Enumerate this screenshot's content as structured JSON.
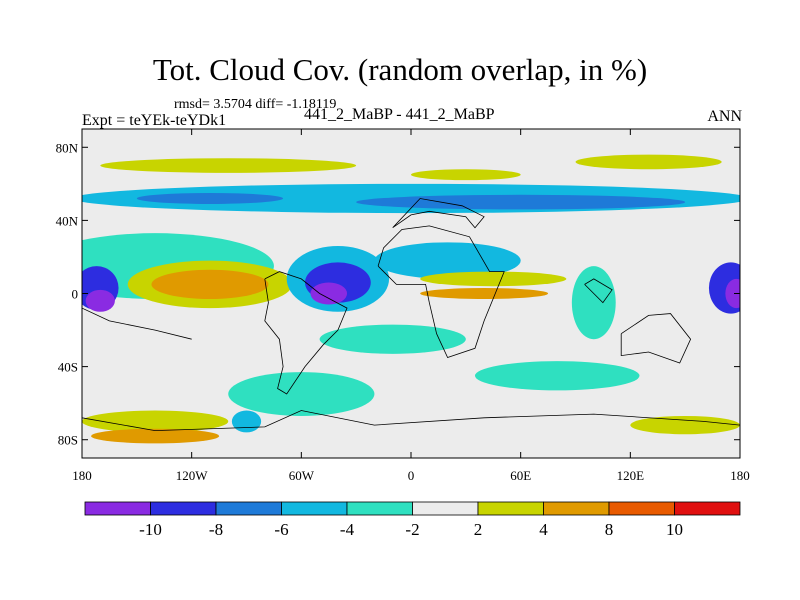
{
  "chart_data": {
    "type": "heatmap",
    "title": "Tot. Cloud Cov. (random overlap, in %)",
    "stats": "rmsd= 3.5704  diff= -1.18119",
    "left_label": "Expt = teYEk-teYDk1",
    "center_label": "441_2_MaBP - 441_2_MaBP",
    "season": "ANN",
    "x_ticks": [
      "180",
      "120W",
      "60W",
      "0",
      "60E",
      "120E",
      "180"
    ],
    "x_tick_values": [
      -180,
      -120,
      -60,
      0,
      60,
      120,
      180
    ],
    "y_ticks": [
      "80N",
      "40N",
      "0",
      "40S",
      "80S"
    ],
    "y_tick_values": [
      80,
      40,
      0,
      -40,
      -80
    ],
    "xlim": [
      -180,
      180
    ],
    "ylim": [
      -90,
      90
    ],
    "colorbar": {
      "labels": [
        "-10",
        "-8",
        "-6",
        "-4",
        "-2",
        "2",
        "4",
        "8",
        "10"
      ],
      "colors": [
        "#8a2be2",
        "#2d2de0",
        "#1e7ad8",
        "#12b8e0",
        "#2fe0c0",
        "#ececec",
        "#c8d400",
        "#e09a00",
        "#e85a00",
        "#e01010"
      ]
    },
    "blobs": [
      {
        "lon": -100,
        "lat": 70,
        "rx": 70,
        "ry": 4,
        "level": 6
      },
      {
        "lon": 130,
        "lat": 72,
        "rx": 40,
        "ry": 4,
        "level": 6
      },
      {
        "lon": 30,
        "lat": 65,
        "rx": 30,
        "ry": 3,
        "level": 6
      },
      {
        "lon": 0,
        "lat": 52,
        "rx": 185,
        "ry": 8,
        "level": 3
      },
      {
        "lon": 60,
        "lat": 50,
        "rx": 90,
        "ry": 4,
        "level": 2
      },
      {
        "lon": -110,
        "lat": 52,
        "rx": 40,
        "ry": 3,
        "level": 2
      },
      {
        "lon": -140,
        "lat": 15,
        "rx": 65,
        "ry": 18,
        "level": 4
      },
      {
        "lon": -172,
        "lat": 3,
        "rx": 12,
        "ry": 12,
        "level": 1
      },
      {
        "lon": -170,
        "lat": -4,
        "rx": 8,
        "ry": 6,
        "level": 0
      },
      {
        "lon": -110,
        "lat": 5,
        "rx": 45,
        "ry": 13,
        "level": 6
      },
      {
        "lon": -110,
        "lat": 5,
        "rx": 32,
        "ry": 8,
        "level": 7
      },
      {
        "lon": -40,
        "lat": 8,
        "rx": 28,
        "ry": 18,
        "level": 3
      },
      {
        "lon": -40,
        "lat": 6,
        "rx": 18,
        "ry": 11,
        "level": 1
      },
      {
        "lon": -45,
        "lat": 0,
        "rx": 10,
        "ry": 6,
        "level": 0
      },
      {
        "lon": 20,
        "lat": 18,
        "rx": 40,
        "ry": 10,
        "level": 3
      },
      {
        "lon": 45,
        "lat": 8,
        "rx": 40,
        "ry": 4,
        "level": 6
      },
      {
        "lon": 40,
        "lat": 0,
        "rx": 35,
        "ry": 3,
        "level": 7
      },
      {
        "lon": -10,
        "lat": -25,
        "rx": 40,
        "ry": 8,
        "level": 4
      },
      {
        "lon": 100,
        "lat": -5,
        "rx": 12,
        "ry": 20,
        "level": 4
      },
      {
        "lon": 175,
        "lat": 3,
        "rx": 12,
        "ry": 14,
        "level": 1
      },
      {
        "lon": 178,
        "lat": 0,
        "rx": 6,
        "ry": 8,
        "level": 0
      },
      {
        "lon": -60,
        "lat": -55,
        "rx": 40,
        "ry": 12,
        "level": 4
      },
      {
        "lon": 80,
        "lat": -45,
        "rx": 45,
        "ry": 8,
        "level": 4
      },
      {
        "lon": -140,
        "lat": -70,
        "rx": 40,
        "ry": 6,
        "level": 6
      },
      {
        "lon": -140,
        "lat": -78,
        "rx": 35,
        "ry": 4,
        "level": 7
      },
      {
        "lon": 150,
        "lat": -72,
        "rx": 30,
        "ry": 5,
        "level": 6
      },
      {
        "lon": -90,
        "lat": -70,
        "rx": 8,
        "ry": 6,
        "level": 3
      }
    ],
    "coastline": [
      [
        [
          -80,
          8
        ],
        [
          -78,
          -5
        ],
        [
          -80,
          -15
        ],
        [
          -72,
          -25
        ],
        [
          -70,
          -40
        ],
        [
          -73,
          -52
        ],
        [
          -68,
          -55
        ],
        [
          -58,
          -40
        ],
        [
          -48,
          -28
        ],
        [
          -40,
          -20
        ],
        [
          -35,
          -8
        ],
        [
          -50,
          0
        ],
        [
          -60,
          8
        ],
        [
          -72,
          12
        ],
        [
          -80,
          8
        ]
      ],
      [
        [
          -18,
          15
        ],
        [
          -15,
          25
        ],
        [
          -5,
          35
        ],
        [
          10,
          37
        ],
        [
          32,
          31
        ],
        [
          43,
          12
        ],
        [
          51,
          12
        ],
        [
          40,
          -15
        ],
        [
          35,
          -30
        ],
        [
          20,
          -35
        ],
        [
          14,
          -22
        ],
        [
          10,
          -5
        ],
        [
          8,
          5
        ],
        [
          -8,
          5
        ],
        [
          -18,
          15
        ]
      ],
      [
        [
          -10,
          36
        ],
        [
          0,
          43
        ],
        [
          10,
          45
        ],
        [
          30,
          42
        ],
        [
          35,
          36
        ],
        [
          40,
          42
        ],
        [
          28,
          48
        ],
        [
          5,
          52
        ],
        [
          -10,
          36
        ]
      ],
      [
        [
          115,
          -22
        ],
        [
          130,
          -12
        ],
        [
          142,
          -11
        ],
        [
          153,
          -25
        ],
        [
          147,
          -38
        ],
        [
          130,
          -32
        ],
        [
          115,
          -34
        ],
        [
          115,
          -22
        ]
      ],
      [
        [
          95,
          5
        ],
        [
          105,
          -5
        ],
        [
          110,
          2
        ],
        [
          100,
          8
        ],
        [
          95,
          5
        ]
      ],
      [
        [
          -180,
          -68
        ],
        [
          -140,
          -75
        ],
        [
          -80,
          -73
        ],
        [
          -60,
          -64
        ],
        [
          -20,
          -72
        ],
        [
          40,
          -68
        ],
        [
          100,
          -66
        ],
        [
          160,
          -70
        ],
        [
          180,
          -72
        ]
      ],
      [
        [
          -180,
          -8
        ],
        [
          -165,
          -15
        ],
        [
          -140,
          -20
        ],
        [
          -120,
          -25
        ]
      ]
    ]
  }
}
